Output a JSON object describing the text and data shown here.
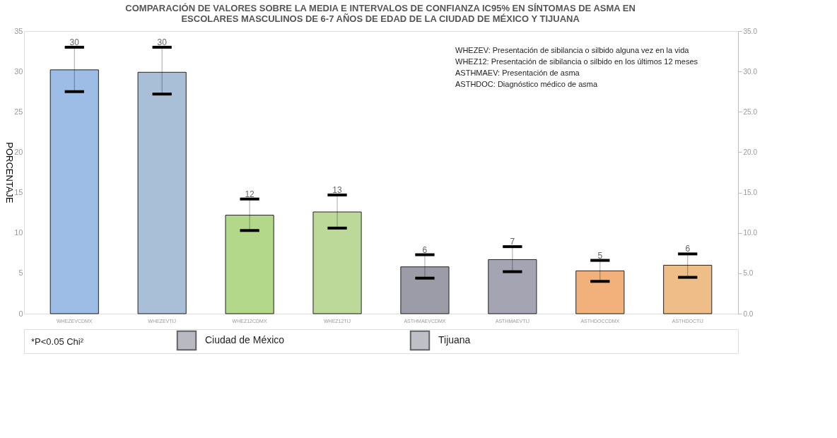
{
  "chart_data": {
    "type": "bar",
    "title": "COMPARACIÓN DE VALORES SOBRE LA MEDIA E INTERVALOS DE CONFIANZA IC95% EN SÍNTOMAS DE ASMA EN ESCOLARES MASCULINOS DE 6-7 AÑOS DE EDAD DE LA CIUDAD DE MÉXICO Y TIJUANA",
    "ylabel": "PORCENTAJE",
    "categories": [
      "WHEZEVCDMX",
      "WHEZEVTIJ",
      "WHEZ12CDMX",
      "WHEZ12TIJ",
      "ASTHMAEVCDMX",
      "ASTHMAEVTIJ",
      "ASTHDOCCDMX",
      "ASTHDOCTIJ"
    ],
    "series": [
      {
        "name": "Ciudad de México",
        "color": "#9c9ca8",
        "colors": [
          "#9dbde6",
          null,
          "#b3d889",
          null,
          "#9c9ca8",
          null,
          "#f2b07a",
          null
        ],
        "values": [
          30.2,
          null,
          12.2,
          null,
          5.8,
          null,
          5.3,
          null
        ],
        "errors": [
          [
            27.5,
            33.0
          ],
          null,
          [
            10.3,
            14.2
          ],
          null,
          [
            4.4,
            7.3
          ],
          null,
          [
            4.0,
            6.6
          ],
          null
        ],
        "value_labels": [
          "30",
          null,
          "12",
          null,
          "6",
          null,
          "5",
          null
        ]
      },
      {
        "name": "Tijuana",
        "color": "#a4a4b2",
        "colors": [
          null,
          "#a9bfd8",
          null,
          "#bcd99a",
          null,
          "#a4a4b2",
          null,
          "#efbd88"
        ],
        "values": [
          null,
          29.9,
          null,
          12.6,
          null,
          6.7,
          null,
          6.0
        ],
        "errors": [
          null,
          [
            27.2,
            33.0
          ],
          null,
          [
            10.6,
            14.7
          ],
          null,
          [
            5.2,
            8.3
          ],
          null,
          [
            4.5,
            7.4
          ]
        ],
        "value_labels": [
          null,
          "30",
          null,
          "13",
          null,
          "7",
          null,
          "6"
        ]
      }
    ],
    "ylim": [
      0,
      35
    ],
    "yticks": [
      0,
      5,
      10,
      15,
      20,
      25,
      30,
      35
    ],
    "y2lim": [
      0,
      35
    ],
    "y2ticks": [
      {
        "value": 0,
        "label": "0.0"
      },
      {
        "value": 5,
        "label": "5.0"
      },
      {
        "value": 10,
        "label": "10.0"
      },
      {
        "value": 15,
        "label": "15.0"
      },
      {
        "value": 20,
        "label": "20.0"
      },
      {
        "value": 25,
        "label": "25.0"
      },
      {
        "value": 30,
        "label": "30.0"
      },
      {
        "value": 35,
        "label": "35.0"
      }
    ],
    "annotations": [
      "WHEZEV: Presentación de sibilancia o silbido alguna vez en la vida",
      "WHEZ12: Presentación de sibilancia o silbido en los últimos 12 meses",
      "ASTHMAEV: Presentación de asma",
      "ASTHDOC: Diagnóstico médico de asma",
      "*P<0.05 Chi²"
    ],
    "grid": false,
    "legend": "bottom"
  }
}
